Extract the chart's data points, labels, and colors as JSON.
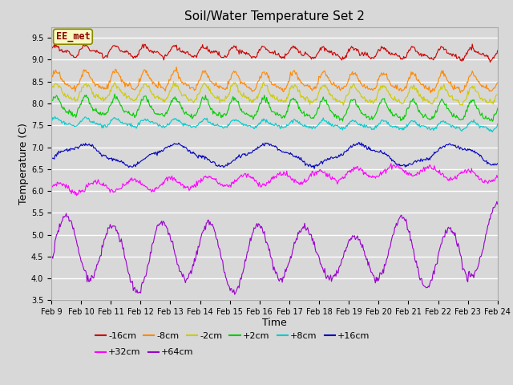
{
  "title": "Soil/Water Temperature Set 2",
  "xlabel": "Time",
  "ylabel": "Temperature (C)",
  "ylim": [
    3.5,
    9.75
  ],
  "xlim": [
    0,
    15
  ],
  "bg_color": "#d8d8d8",
  "annotation_text": "EE_met",
  "annotation_color": "#880000",
  "annotation_bg": "#f8f8c0",
  "annotation_border": "#888800",
  "x_ticks_labels": [
    "Feb 9",
    "Feb 10",
    "Feb 11",
    "Feb 12",
    "Feb 13",
    "Feb 14",
    "Feb 15",
    "Feb 16",
    "Feb 17",
    "Feb 18",
    "Feb 19",
    "Feb 20",
    "Feb 21",
    "Feb 22",
    "Feb 23",
    "Feb 24"
  ],
  "y_ticks": [
    3.5,
    4.0,
    4.5,
    5.0,
    5.5,
    6.0,
    6.5,
    7.0,
    7.5,
    8.0,
    8.5,
    9.0,
    9.5
  ],
  "legend_row1": [
    {
      "label": "-16cm",
      "color": "#cc0000"
    },
    {
      "label": "-8cm",
      "color": "#ff8800"
    },
    {
      "label": "-2cm",
      "color": "#cccc00"
    },
    {
      "label": "+2cm",
      "color": "#00cc00"
    },
    {
      "label": "+8cm",
      "color": "#00cccc"
    },
    {
      "label": "+16cm",
      "color": "#0000bb"
    }
  ],
  "legend_row2": [
    {
      "label": "+32cm",
      "color": "#ff00ff"
    },
    {
      "label": "+64cm",
      "color": "#9900cc"
    }
  ],
  "title_fontsize": 11,
  "axis_label_fontsize": 9,
  "tick_fontsize": 7,
  "legend_fontsize": 8
}
